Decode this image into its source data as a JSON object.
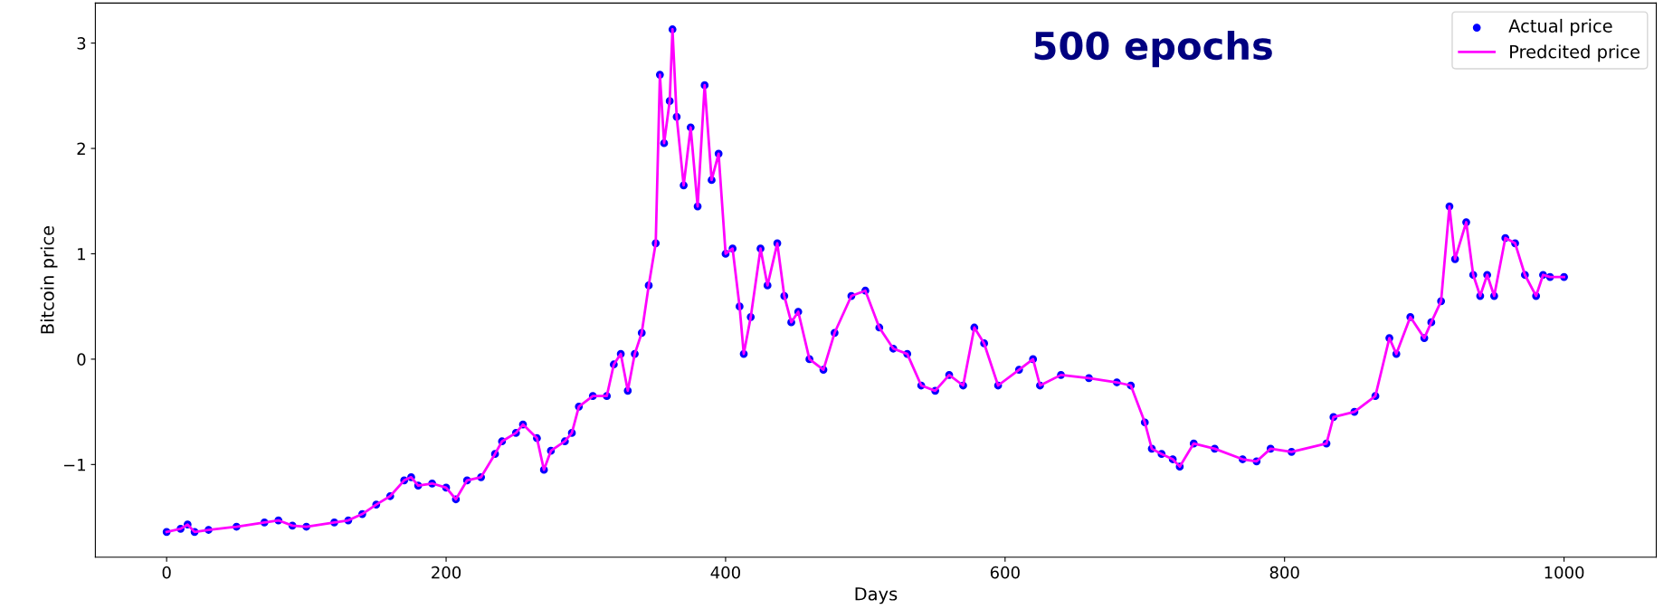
{
  "chart_data": {
    "type": "line",
    "xlabel": "Days",
    "ylabel": "Bitcoin price",
    "annotations": [
      "500 epochs"
    ],
    "x": [
      0,
      10,
      15,
      20,
      30,
      50,
      70,
      80,
      90,
      100,
      120,
      130,
      140,
      150,
      160,
      170,
      175,
      180,
      190,
      200,
      207,
      215,
      225,
      235,
      240,
      250,
      255,
      265,
      270,
      275,
      285,
      290,
      295,
      305,
      315,
      320,
      325,
      330,
      335,
      340,
      345,
      350,
      353,
      356,
      360,
      362,
      365,
      370,
      375,
      380,
      385,
      390,
      395,
      400,
      405,
      410,
      413,
      418,
      425,
      430,
      437,
      442,
      447,
      452,
      460,
      470,
      478,
      490,
      500,
      510,
      520,
      530,
      540,
      550,
      560,
      570,
      578,
      585,
      595,
      610,
      620,
      625,
      640,
      660,
      680,
      690,
      700,
      705,
      712,
      720,
      725,
      735,
      750,
      770,
      780,
      790,
      805,
      830,
      835,
      850,
      865,
      875,
      880,
      890,
      900,
      905,
      912,
      918,
      922,
      930,
      935,
      940,
      945,
      950,
      958,
      965,
      972,
      980,
      985,
      990,
      1000
    ],
    "series": [
      {
        "name": "Actual price",
        "type": "scatter",
        "marker": "circle",
        "color": "#0000ff",
        "values": [
          -1.64,
          -1.61,
          -1.57,
          -1.64,
          -1.62,
          -1.59,
          -1.55,
          -1.53,
          -1.58,
          -1.59,
          -1.55,
          -1.53,
          -1.47,
          -1.38,
          -1.3,
          -1.15,
          -1.12,
          -1.2,
          -1.18,
          -1.22,
          -1.33,
          -1.15,
          -1.12,
          -0.9,
          -0.78,
          -0.7,
          -0.62,
          -0.75,
          -1.05,
          -0.87,
          -0.78,
          -0.7,
          -0.45,
          -0.35,
          -0.35,
          -0.05,
          0.05,
          -0.3,
          0.05,
          0.25,
          0.7,
          1.1,
          2.7,
          2.05,
          2.45,
          3.13,
          2.3,
          1.65,
          2.2,
          1.45,
          2.6,
          1.7,
          1.95,
          1.0,
          1.05,
          0.5,
          0.05,
          0.4,
          1.05,
          0.7,
          1.1,
          0.6,
          0.35,
          0.45,
          0.0,
          -0.1,
          0.25,
          0.6,
          0.65,
          0.3,
          0.1,
          0.05,
          -0.25,
          -0.3,
          -0.15,
          -0.25,
          0.3,
          0.15,
          -0.25,
          -0.1,
          0.0,
          -0.25,
          -0.15,
          -0.18,
          -0.22,
          -0.25,
          -0.6,
          -0.85,
          -0.9,
          -0.95,
          -1.02,
          -0.8,
          -0.85,
          -0.95,
          -0.97,
          -0.85,
          -0.88,
          -0.8,
          -0.55,
          -0.5,
          -0.35,
          0.2,
          0.05,
          0.4,
          0.2,
          0.35,
          0.55,
          1.45,
          0.95,
          1.3,
          0.8,
          0.6,
          0.8,
          0.6,
          1.15,
          1.1,
          0.8,
          0.6,
          0.8,
          0.78,
          0.78
        ]
      },
      {
        "name": "Predcited price",
        "marker": "none",
        "line_style": "solid",
        "color": "#ff00ff",
        "values": [
          -1.64,
          -1.61,
          -1.57,
          -1.64,
          -1.62,
          -1.59,
          -1.55,
          -1.53,
          -1.58,
          -1.59,
          -1.55,
          -1.53,
          -1.47,
          -1.38,
          -1.3,
          -1.15,
          -1.12,
          -1.2,
          -1.18,
          -1.22,
          -1.33,
          -1.15,
          -1.12,
          -0.9,
          -0.78,
          -0.7,
          -0.62,
          -0.75,
          -1.05,
          -0.87,
          -0.78,
          -0.7,
          -0.45,
          -0.35,
          -0.35,
          -0.05,
          0.05,
          -0.3,
          0.05,
          0.25,
          0.7,
          1.1,
          2.7,
          2.05,
          2.45,
          3.13,
          2.3,
          1.65,
          2.2,
          1.45,
          2.6,
          1.7,
          1.95,
          1.0,
          1.05,
          0.5,
          0.05,
          0.4,
          1.05,
          0.7,
          1.1,
          0.6,
          0.35,
          0.45,
          0.0,
          -0.1,
          0.25,
          0.6,
          0.65,
          0.3,
          0.1,
          0.05,
          -0.25,
          -0.3,
          -0.15,
          -0.25,
          0.3,
          0.15,
          -0.25,
          -0.1,
          0.0,
          -0.25,
          -0.15,
          -0.18,
          -0.22,
          -0.25,
          -0.6,
          -0.85,
          -0.9,
          -0.95,
          -1.02,
          -0.8,
          -0.85,
          -0.95,
          -0.97,
          -0.85,
          -0.88,
          -0.8,
          -0.55,
          -0.5,
          -0.35,
          0.2,
          0.05,
          0.4,
          0.2,
          0.35,
          0.55,
          1.45,
          0.95,
          1.3,
          0.8,
          0.6,
          0.8,
          0.6,
          1.15,
          1.1,
          0.8,
          0.6,
          0.8,
          0.78,
          0.78
        ]
      }
    ],
    "xlim": [
      -51,
      1066
    ],
    "ylim": [
      -1.88,
      3.38
    ],
    "xticks": [
      0,
      200,
      400,
      600,
      800,
      1000
    ],
    "yticks": [
      {
        "value": -1,
        "label": "−1"
      },
      0,
      1,
      2,
      3
    ],
    "grid": false,
    "legend": "top right"
  }
}
